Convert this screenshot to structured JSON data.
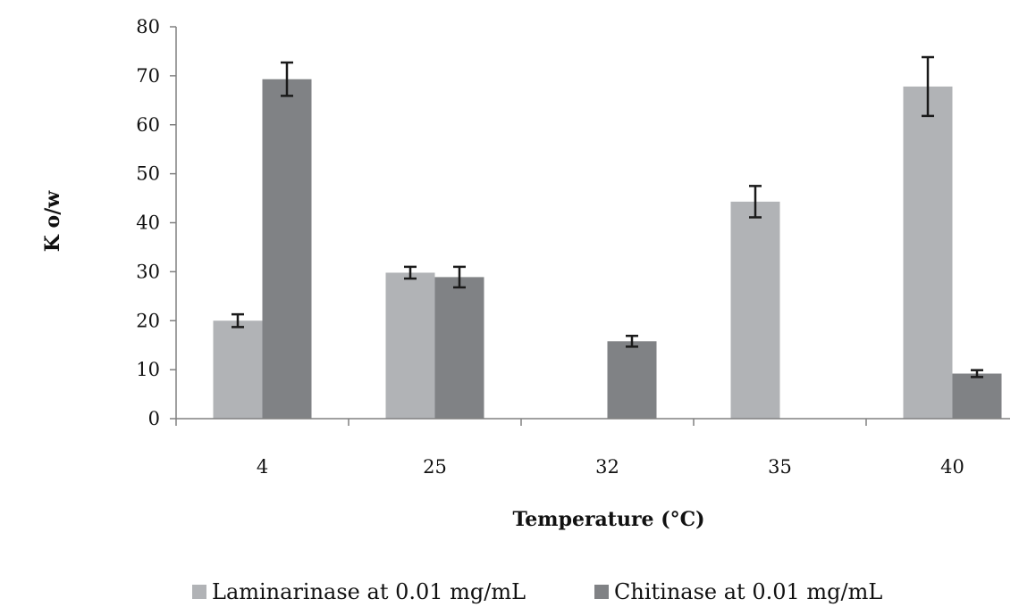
{
  "chart_data": {
    "type": "bar",
    "title": "",
    "xlabel": "Temperature (°C)",
    "ylabel": "K o/w",
    "ylim": [
      0,
      80
    ],
    "yticks": [
      0,
      10,
      20,
      30,
      40,
      50,
      60,
      70,
      80
    ],
    "grid": false,
    "legend_position": "bottom",
    "categories": [
      "4",
      "25",
      "32",
      "35",
      "40"
    ],
    "series": [
      {
        "name": "Laminarinase at 0.01 mg/mL",
        "color": "#b1b3b6",
        "values": [
          20,
          29.8,
          0,
          44.3,
          67.8
        ],
        "errors": [
          1.3,
          1.2,
          0,
          3.2,
          6.0
        ]
      },
      {
        "name": "Chitinase at 0.01 mg/mL",
        "color": "#808285",
        "values": [
          69.3,
          28.9,
          15.8,
          0,
          9.2
        ],
        "errors": [
          3.4,
          2.1,
          1.1,
          0,
          0.7
        ]
      }
    ]
  }
}
